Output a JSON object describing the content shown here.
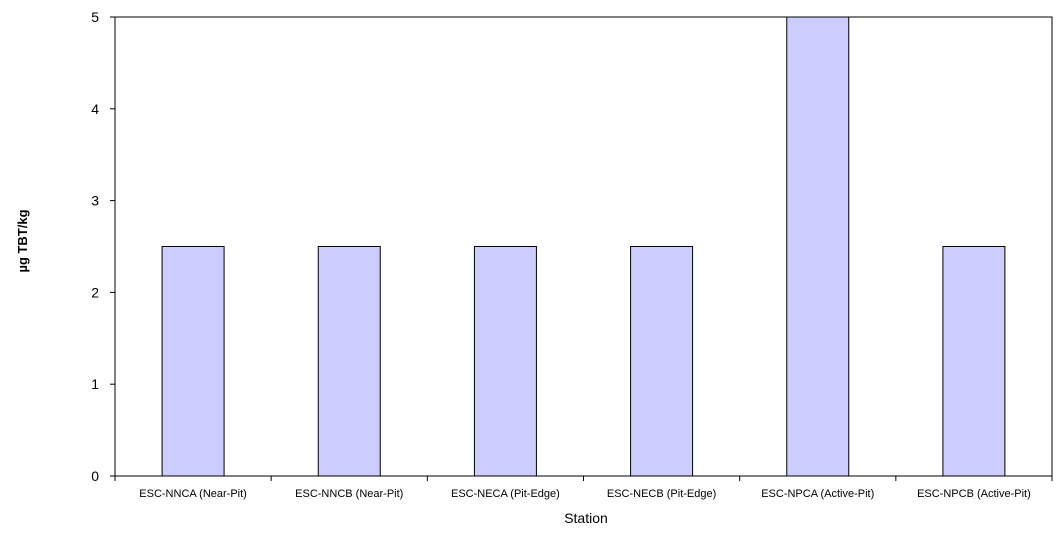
{
  "chart_data": {
    "type": "bar",
    "title": "",
    "xlabel": "Station",
    "ylabel": "µg TBT/kg",
    "categories": [
      "ESC-NNCA (Near-Pit)",
      "ESC-NNCB (Near-Pit)",
      "ESC-NECA (Pit-Edge)",
      "ESC-NECB (Pit-Edge)",
      "ESC-NPCA (Active-Pit)",
      "ESC-NPCB (Active-Pit)"
    ],
    "values": [
      2.5,
      2.5,
      2.5,
      2.5,
      5.0,
      2.5
    ],
    "ylim": [
      0,
      5
    ],
    "yticks": [
      "0",
      "1",
      "2",
      "3",
      "4",
      "5"
    ],
    "grid": false,
    "legend": "none",
    "bar_color": "#ccccff",
    "bar_edge_color": "#000000"
  }
}
